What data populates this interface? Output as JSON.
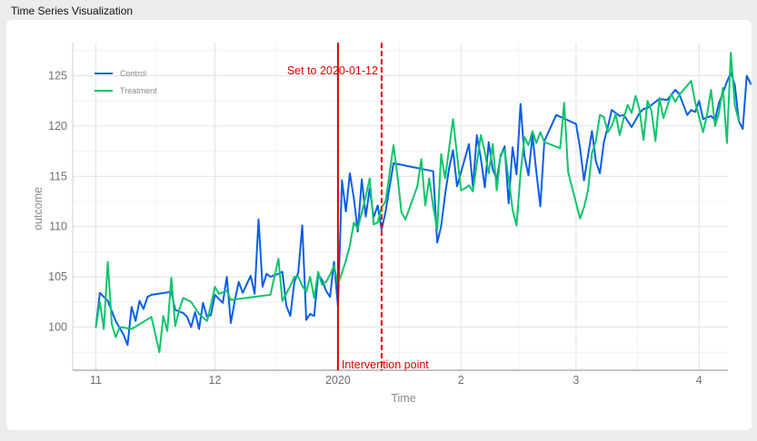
{
  "window": {
    "title": "Time Series Visualization"
  },
  "chart_data": {
    "type": "line",
    "title": "",
    "xlabel": "Time",
    "ylabel": "outcome",
    "x_ticks": [
      {
        "label": "11",
        "date": "2019-11-01"
      },
      {
        "label": "12",
        "date": "2019-12-01"
      },
      {
        "label": "2020",
        "date": "2020-01-01"
      },
      {
        "label": "2",
        "date": "2020-02-01"
      },
      {
        "label": "3",
        "date": "2020-03-01"
      },
      {
        "label": "4",
        "date": "2020-04-01"
      }
    ],
    "xlim": [
      "2019-10-28",
      "2020-04-07"
    ],
    "y_ticks": [
      100,
      105,
      110,
      115,
      120,
      125
    ],
    "ylim": [
      95.7,
      128.3
    ],
    "grid": true,
    "legend": {
      "position": "top-left"
    },
    "colors": {
      "Control": "#0a5ee8",
      "Treatment": "#0fc46a",
      "annotation": "#e00000"
    },
    "annotations": [
      {
        "type": "vline",
        "date": "2020-01-01",
        "style": "solid",
        "label": "Intervention point"
      },
      {
        "type": "vline",
        "date": "2020-01-12",
        "style": "dashed",
        "label": "Set to 2020-01-12"
      }
    ],
    "series": [
      {
        "name": "Control",
        "points": [
          [
            "2019-11-01",
            100.0
          ],
          [
            "2019-11-02",
            103.4
          ],
          [
            "2019-11-04",
            102.6
          ],
          [
            "2019-11-06",
            100.6
          ],
          [
            "2019-11-08",
            99.2
          ],
          [
            "2019-11-09",
            98.2
          ],
          [
            "2019-11-10",
            102.0
          ],
          [
            "2019-11-11",
            100.6
          ],
          [
            "2019-11-12",
            102.6
          ],
          [
            "2019-11-13",
            101.8
          ],
          [
            "2019-11-14",
            103.0
          ],
          [
            "2019-11-15",
            103.2
          ],
          [
            "2019-11-20",
            103.5
          ],
          [
            "2019-11-21",
            101.7
          ],
          [
            "2019-11-23",
            101.4
          ],
          [
            "2019-11-24",
            101.0
          ],
          [
            "2019-11-25",
            100.0
          ],
          [
            "2019-11-26",
            101.5
          ],
          [
            "2019-11-27",
            99.8
          ],
          [
            "2019-11-28",
            102.4
          ],
          [
            "2019-11-29",
            101.0
          ],
          [
            "2019-11-30",
            101.2
          ],
          [
            "2019-12-01",
            103.2
          ],
          [
            "2019-12-03",
            102.4
          ],
          [
            "2019-12-04",
            105.0
          ],
          [
            "2019-12-05",
            100.4
          ],
          [
            "2019-12-06",
            102.6
          ],
          [
            "2019-12-07",
            104.5
          ],
          [
            "2019-12-08",
            103.4
          ],
          [
            "2019-12-10",
            105.1
          ],
          [
            "2019-12-11",
            103.3
          ],
          [
            "2019-12-12",
            110.7
          ],
          [
            "2019-12-13",
            104.0
          ],
          [
            "2019-12-14",
            105.3
          ],
          [
            "2019-12-15",
            105.0
          ],
          [
            "2019-12-17",
            105.3
          ],
          [
            "2019-12-18",
            105.5
          ],
          [
            "2019-12-19",
            102.1
          ],
          [
            "2019-12-20",
            101.1
          ],
          [
            "2019-12-21",
            104.5
          ],
          [
            "2019-12-22",
            105.4
          ],
          [
            "2019-12-23",
            110.1
          ],
          [
            "2019-12-24",
            100.7
          ],
          [
            "2019-12-25",
            101.3
          ],
          [
            "2019-12-26",
            101.1
          ],
          [
            "2019-12-27",
            105.2
          ],
          [
            "2019-12-28",
            104.7
          ],
          [
            "2019-12-29",
            103.6
          ],
          [
            "2019-12-30",
            103.0
          ],
          [
            "2019-12-31",
            106.5
          ],
          [
            "2020-01-01",
            102.1
          ],
          [
            "2020-01-02",
            114.6
          ],
          [
            "2020-01-03",
            111.5
          ],
          [
            "2020-01-04",
            115.3
          ],
          [
            "2020-01-05",
            112.8
          ],
          [
            "2020-01-06",
            109.5
          ],
          [
            "2020-01-07",
            114.7
          ],
          [
            "2020-01-08",
            111.0
          ],
          [
            "2020-01-09",
            113.8
          ],
          [
            "2020-01-10",
            110.9
          ],
          [
            "2020-01-11",
            112.1
          ],
          [
            "2020-01-12",
            109.7
          ],
          [
            "2020-01-13",
            111.5
          ],
          [
            "2020-01-15",
            116.3
          ],
          [
            "2020-01-25",
            115.5
          ],
          [
            "2020-01-26",
            108.4
          ],
          [
            "2020-01-27",
            110.0
          ],
          [
            "2020-01-28",
            113.2
          ],
          [
            "2020-01-29",
            115.8
          ],
          [
            "2020-01-30",
            117.6
          ],
          [
            "2020-01-31",
            114.0
          ],
          [
            "2020-02-03",
            118.2
          ],
          [
            "2020-02-04",
            113.9
          ],
          [
            "2020-02-05",
            119.1
          ],
          [
            "2020-02-06",
            116.8
          ],
          [
            "2020-02-07",
            113.9
          ],
          [
            "2020-02-08",
            118.4
          ],
          [
            "2020-02-09",
            115.7
          ],
          [
            "2020-02-10",
            114.7
          ],
          [
            "2020-02-11",
            117.0
          ],
          [
            "2020-02-12",
            118.0
          ],
          [
            "2020-02-13",
            112.3
          ],
          [
            "2020-02-14",
            117.9
          ],
          [
            "2020-02-15",
            115.2
          ],
          [
            "2020-02-16",
            122.2
          ],
          [
            "2020-02-17",
            117.0
          ],
          [
            "2020-02-18",
            115.1
          ],
          [
            "2020-02-19",
            119.1
          ],
          [
            "2020-02-20",
            115.4
          ],
          [
            "2020-02-21",
            112.0
          ],
          [
            "2020-02-22",
            118.5
          ],
          [
            "2020-02-25",
            121.1
          ],
          [
            "2020-03-01",
            120.2
          ],
          [
            "2020-03-02",
            117.8
          ],
          [
            "2020-03-03",
            114.6
          ],
          [
            "2020-03-05",
            119.5
          ],
          [
            "2020-03-06",
            116.5
          ],
          [
            "2020-03-07",
            115.3
          ],
          [
            "2020-03-08",
            118.4
          ],
          [
            "2020-03-09",
            119.9
          ],
          [
            "2020-03-10",
            121.6
          ],
          [
            "2020-03-12",
            121.0
          ],
          [
            "2020-03-13",
            121.1
          ],
          [
            "2020-03-15",
            119.9
          ],
          [
            "2020-03-17",
            121.3
          ],
          [
            "2020-03-18",
            121.7
          ],
          [
            "2020-03-19",
            121.8
          ],
          [
            "2020-03-21",
            122.4
          ],
          [
            "2020-03-22",
            122.7
          ],
          [
            "2020-03-24",
            122.6
          ],
          [
            "2020-03-26",
            123.6
          ],
          [
            "2020-03-27",
            123.2
          ],
          [
            "2020-03-29",
            121.1
          ],
          [
            "2020-03-30",
            121.6
          ],
          [
            "2020-03-31",
            121.4
          ],
          [
            "2020-04-01",
            122.5
          ],
          [
            "2020-04-02",
            120.7
          ],
          [
            "2020-04-04",
            121.0
          ],
          [
            "2020-04-05",
            120.6
          ],
          [
            "2020-04-06",
            122.3
          ],
          [
            "2020-04-07",
            123.3
          ],
          [
            "2020-04-08",
            124.4
          ],
          [
            "2020-04-09",
            125.3
          ],
          [
            "2020-04-10",
            124.1
          ],
          [
            "2020-04-11",
            120.5
          ],
          [
            "2020-04-12",
            119.7
          ],
          [
            "2020-04-13",
            125.0
          ],
          [
            "2020-04-14",
            124.2
          ]
        ]
      },
      {
        "name": "Treatment",
        "points": [
          [
            "2019-11-01",
            100.0
          ],
          [
            "2019-11-02",
            102.5
          ],
          [
            "2019-11-03",
            99.8
          ],
          [
            "2019-11-04",
            106.5
          ],
          [
            "2019-11-05",
            100.3
          ],
          [
            "2019-11-06",
            99.0
          ],
          [
            "2019-11-07",
            100.0
          ],
          [
            "2019-11-10",
            99.8
          ],
          [
            "2019-11-15",
            101.0
          ],
          [
            "2019-11-17",
            97.5
          ],
          [
            "2019-11-18",
            101.1
          ],
          [
            "2019-11-19",
            99.6
          ],
          [
            "2019-11-20",
            104.9
          ],
          [
            "2019-11-21",
            100.1
          ],
          [
            "2019-11-22",
            101.7
          ],
          [
            "2019-11-23",
            102.9
          ],
          [
            "2019-11-25",
            102.5
          ],
          [
            "2019-11-27",
            101.3
          ],
          [
            "2019-11-29",
            100.6
          ],
          [
            "2019-11-30",
            102.2
          ],
          [
            "2019-12-01",
            104.0
          ],
          [
            "2019-12-02",
            103.3
          ],
          [
            "2019-12-04",
            103.6
          ],
          [
            "2019-12-05",
            102.7
          ],
          [
            "2019-12-15",
            103.2
          ],
          [
            "2019-12-17",
            106.8
          ],
          [
            "2019-12-18",
            102.6
          ],
          [
            "2019-12-20",
            104.1
          ],
          [
            "2019-12-21",
            105.0
          ],
          [
            "2019-12-22",
            105.0
          ],
          [
            "2019-12-23",
            104.1
          ],
          [
            "2019-12-24",
            103.5
          ],
          [
            "2019-12-25",
            105.0
          ],
          [
            "2019-12-26",
            102.9
          ],
          [
            "2019-12-27",
            105.5
          ],
          [
            "2019-12-28",
            104.2
          ],
          [
            "2019-12-29",
            104.5
          ],
          [
            "2019-12-30",
            105.2
          ],
          [
            "2019-12-31",
            106.1
          ],
          [
            "2020-01-01",
            104.2
          ],
          [
            "2020-01-02",
            105.4
          ],
          [
            "2020-01-03",
            106.6
          ],
          [
            "2020-01-04",
            108.1
          ],
          [
            "2020-01-05",
            110.4
          ],
          [
            "2020-01-06",
            109.8
          ],
          [
            "2020-01-07",
            111.4
          ],
          [
            "2020-01-08",
            113.0
          ],
          [
            "2020-01-09",
            114.8
          ],
          [
            "2020-01-10",
            110.2
          ],
          [
            "2020-01-11",
            110.4
          ],
          [
            "2020-01-12",
            111.9
          ],
          [
            "2020-01-13",
            112.5
          ],
          [
            "2020-01-15",
            118.1
          ],
          [
            "2020-01-16",
            115.0
          ],
          [
            "2020-01-17",
            111.4
          ],
          [
            "2020-01-18",
            110.7
          ],
          [
            "2020-01-21",
            114.0
          ],
          [
            "2020-01-22",
            116.7
          ],
          [
            "2020-01-23",
            112.1
          ],
          [
            "2020-01-24",
            114.8
          ],
          [
            "2020-01-25",
            112.0
          ],
          [
            "2020-01-26",
            109.7
          ],
          [
            "2020-01-27",
            117.2
          ],
          [
            "2020-01-28",
            114.8
          ],
          [
            "2020-01-30",
            120.7
          ],
          [
            "2020-02-01",
            113.6
          ],
          [
            "2020-02-02",
            113.8
          ],
          [
            "2020-02-03",
            114.1
          ],
          [
            "2020-02-04",
            113.5
          ],
          [
            "2020-02-06",
            119.1
          ],
          [
            "2020-02-07",
            117.4
          ],
          [
            "2020-02-08",
            115.3
          ],
          [
            "2020-02-09",
            118.2
          ],
          [
            "2020-02-10",
            113.6
          ],
          [
            "2020-02-11",
            117.2
          ],
          [
            "2020-02-12",
            117.6
          ],
          [
            "2020-02-13",
            114.8
          ],
          [
            "2020-02-14",
            111.7
          ],
          [
            "2020-02-15",
            110.1
          ],
          [
            "2020-02-16",
            115.3
          ],
          [
            "2020-02-17",
            118.9
          ],
          [
            "2020-02-18",
            118.1
          ],
          [
            "2020-02-19",
            119.5
          ],
          [
            "2020-02-20",
            118.3
          ],
          [
            "2020-02-21",
            119.4
          ],
          [
            "2020-02-22",
            118.4
          ],
          [
            "2020-02-26",
            117.8
          ],
          [
            "2020-02-27",
            122.3
          ],
          [
            "2020-02-28",
            115.4
          ],
          [
            "2020-03-02",
            110.8
          ],
          [
            "2020-03-03",
            111.9
          ],
          [
            "2020-03-04",
            113.6
          ],
          [
            "2020-03-05",
            117.3
          ],
          [
            "2020-03-06",
            118.5
          ],
          [
            "2020-03-07",
            121.1
          ],
          [
            "2020-03-08",
            120.9
          ],
          [
            "2020-03-09",
            119.4
          ],
          [
            "2020-03-10",
            120.0
          ],
          [
            "2020-03-11",
            121.2
          ],
          [
            "2020-03-12",
            119.1
          ],
          [
            "2020-03-13",
            120.8
          ],
          [
            "2020-03-14",
            122.1
          ],
          [
            "2020-03-15",
            121.3
          ],
          [
            "2020-03-16",
            123.0
          ],
          [
            "2020-03-17",
            121.6
          ],
          [
            "2020-03-18",
            118.6
          ],
          [
            "2020-03-19",
            122.5
          ],
          [
            "2020-03-20",
            121.5
          ],
          [
            "2020-03-21",
            118.5
          ],
          [
            "2020-03-22",
            122.8
          ],
          [
            "2020-03-23",
            120.8
          ],
          [
            "2020-03-25",
            123.2
          ],
          [
            "2020-03-26",
            122.4
          ],
          [
            "2020-03-27",
            123.1
          ],
          [
            "2020-03-30",
            124.5
          ],
          [
            "2020-03-31",
            122.4
          ],
          [
            "2020-04-02",
            119.4
          ],
          [
            "2020-04-03",
            121.1
          ],
          [
            "2020-04-04",
            123.6
          ],
          [
            "2020-04-05",
            120.0
          ],
          [
            "2020-04-06",
            121.3
          ],
          [
            "2020-04-07",
            123.8
          ],
          [
            "2020-04-08",
            118.3
          ],
          [
            "2020-04-09",
            127.3
          ],
          [
            "2020-04-10",
            122.1
          ],
          [
            "2020-04-11",
            120.5
          ]
        ]
      }
    ]
  }
}
